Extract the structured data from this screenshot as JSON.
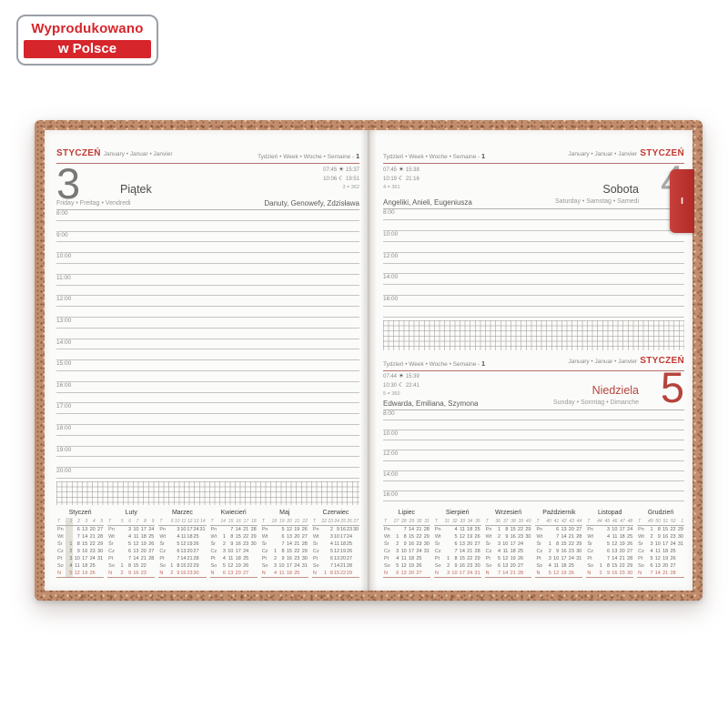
{
  "badge": {
    "line1": "Wyprodukowano",
    "line2": "w Polsce"
  },
  "tab": {
    "label": "I"
  },
  "icons": {
    "sun": "☀",
    "moon": "☾"
  },
  "week_col_header": "T",
  "weekdays": [
    "Pn",
    "Wt",
    "Śr",
    "Cz",
    "Pt",
    "So",
    "N"
  ],
  "left_page": {
    "month": "STYCZEŃ",
    "month_intl": "January • Januar • Janvier",
    "week_label": "Tydzień • Week • Woche • Semaine -",
    "week_number": "1",
    "day": {
      "number": "3",
      "name": "Piątek",
      "name_intl": "Friday • Freitag • Vendredi",
      "sunrise": "07:45",
      "sunset": "15:37",
      "moonrise": "10:06",
      "moonset": "19:51",
      "day_of_year": "3 = 362",
      "namedays": "Danuty, Genowefy, Zdzisława"
    },
    "hours": [
      "8:00",
      "9:00",
      "10:00",
      "11:00",
      "12:00",
      "13:00",
      "14:00",
      "15:00",
      "16:00",
      "17:00",
      "18:00",
      "19:00",
      "20:00"
    ]
  },
  "right_page": {
    "top": {
      "month": "STYCZEŃ",
      "month_intl": "January • Januar • Janvier",
      "week_label": "Tydzień • Week • Woche • Semaine -",
      "week_number": "1",
      "day": {
        "number": "4",
        "name": "Sobota",
        "name_intl": "Saturday • Samstag • Samedi",
        "sunrise": "07:45",
        "sunset": "15:38",
        "moonrise": "10:19",
        "moonset": "21:16",
        "day_of_year": "4 = 361",
        "namedays": "Angeliki, Anieli, Eugeniusza"
      },
      "hours": [
        "8:00",
        "10:00",
        "12:00",
        "14:00",
        "16:00"
      ]
    },
    "bottom": {
      "month": "STYCZEŃ",
      "month_intl": "January • Januar • Janvier",
      "week_label": "Tydzień • Week • Woche • Semaine -",
      "week_number": "1",
      "day": {
        "number": "5",
        "name": "Niedziela",
        "name_intl": "Sunday • Sonntag • Dimanche",
        "sunrise": "07:44",
        "sunset": "15:39",
        "moonrise": "10:30",
        "moonset": "22:41",
        "day_of_year": "5 = 360",
        "namedays": "Edwarda, Emiliana, Szymona"
      },
      "hours": [
        "8:00",
        "10:00",
        "12:00",
        "14:00",
        "16:00"
      ]
    }
  },
  "calendars_left": [
    {
      "name": "Styczeń",
      "weeks": [
        1,
        2,
        3,
        4,
        5
      ],
      "highlight_col": 0,
      "rows": [
        [
          "",
          6,
          13,
          20,
          27
        ],
        [
          "",
          7,
          14,
          21,
          28
        ],
        [
          1,
          8,
          15,
          22,
          29
        ],
        [
          2,
          9,
          16,
          23,
          30
        ],
        [
          3,
          10,
          17,
          24,
          31
        ],
        [
          4,
          11,
          18,
          25,
          ""
        ],
        [
          5,
          12,
          19,
          26,
          ""
        ]
      ]
    },
    {
      "name": "Luty",
      "weeks": [
        5,
        6,
        7,
        8,
        9
      ],
      "highlight_col": null,
      "rows": [
        [
          "",
          3,
          10,
          17,
          24
        ],
        [
          "",
          4,
          11,
          18,
          25
        ],
        [
          "",
          5,
          12,
          19,
          26
        ],
        [
          "",
          6,
          13,
          20,
          27
        ],
        [
          "",
          7,
          14,
          21,
          28
        ],
        [
          1,
          8,
          15,
          22,
          ""
        ],
        [
          2,
          9,
          16,
          23,
          ""
        ]
      ]
    },
    {
      "name": "Marzec",
      "weeks": [
        9,
        10,
        11,
        12,
        13,
        14
      ],
      "highlight_col": null,
      "rows": [
        [
          "",
          3,
          10,
          17,
          24,
          31
        ],
        [
          "",
          4,
          11,
          18,
          25,
          ""
        ],
        [
          "",
          5,
          12,
          19,
          26,
          ""
        ],
        [
          "",
          6,
          13,
          20,
          27,
          ""
        ],
        [
          "",
          7,
          14,
          21,
          28,
          ""
        ],
        [
          1,
          8,
          15,
          22,
          29,
          ""
        ],
        [
          2,
          9,
          16,
          23,
          30,
          ""
        ]
      ]
    },
    {
      "name": "Kwiecień",
      "weeks": [
        14,
        15,
        16,
        17,
        18
      ],
      "highlight_col": null,
      "rows": [
        [
          "",
          7,
          14,
          21,
          28
        ],
        [
          1,
          8,
          15,
          22,
          29
        ],
        [
          2,
          9,
          16,
          23,
          30
        ],
        [
          3,
          10,
          17,
          24,
          ""
        ],
        [
          4,
          11,
          18,
          25,
          ""
        ],
        [
          5,
          12,
          19,
          26,
          ""
        ],
        [
          6,
          13,
          20,
          27,
          ""
        ]
      ]
    },
    {
      "name": "Maj",
      "weeks": [
        18,
        19,
        20,
        21,
        22
      ],
      "highlight_col": null,
      "rows": [
        [
          "",
          5,
          12,
          19,
          26
        ],
        [
          "",
          6,
          13,
          20,
          27
        ],
        [
          "",
          7,
          14,
          21,
          28
        ],
        [
          1,
          8,
          15,
          22,
          29
        ],
        [
          2,
          9,
          16,
          23,
          30
        ],
        [
          3,
          10,
          17,
          24,
          31
        ],
        [
          4,
          11,
          18,
          25,
          ""
        ]
      ]
    },
    {
      "name": "Czerwiec",
      "weeks": [
        22,
        23,
        24,
        25,
        26,
        27
      ],
      "highlight_col": null,
      "rows": [
        [
          "",
          2,
          9,
          16,
          23,
          30
        ],
        [
          "",
          3,
          10,
          17,
          24,
          ""
        ],
        [
          "",
          4,
          11,
          18,
          25,
          ""
        ],
        [
          "",
          5,
          12,
          19,
          26,
          ""
        ],
        [
          "",
          6,
          13,
          20,
          27,
          ""
        ],
        [
          "",
          7,
          14,
          21,
          28,
          ""
        ],
        [
          1,
          8,
          15,
          22,
          29,
          ""
        ]
      ]
    }
  ],
  "calendars_right": [
    {
      "name": "Lipiec",
      "weeks": [
        27,
        28,
        29,
        30,
        31
      ],
      "highlight_col": null,
      "rows": [
        [
          "",
          7,
          14,
          21,
          28
        ],
        [
          1,
          8,
          15,
          22,
          29
        ],
        [
          2,
          9,
          16,
          23,
          30
        ],
        [
          3,
          10,
          17,
          24,
          31
        ],
        [
          4,
          11,
          18,
          25,
          ""
        ],
        [
          5,
          12,
          19,
          26,
          ""
        ],
        [
          6,
          13,
          20,
          27,
          ""
        ]
      ]
    },
    {
      "name": "Sierpień",
      "weeks": [
        31,
        32,
        33,
        34,
        35
      ],
      "highlight_col": null,
      "rows": [
        [
          "",
          4,
          11,
          18,
          25
        ],
        [
          "",
          5,
          12,
          19,
          26
        ],
        [
          "",
          6,
          13,
          20,
          27
        ],
        [
          "",
          7,
          14,
          21,
          28
        ],
        [
          1,
          8,
          15,
          22,
          29
        ],
        [
          2,
          9,
          16,
          23,
          30
        ],
        [
          3,
          10,
          17,
          24,
          31
        ]
      ]
    },
    {
      "name": "Wrzesień",
      "weeks": [
        36,
        37,
        38,
        39,
        40
      ],
      "highlight_col": null,
      "rows": [
        [
          1,
          8,
          15,
          22,
          29
        ],
        [
          2,
          9,
          16,
          23,
          30
        ],
        [
          3,
          10,
          17,
          24,
          ""
        ],
        [
          4,
          11,
          18,
          25,
          ""
        ],
        [
          5,
          12,
          19,
          26,
          ""
        ],
        [
          6,
          13,
          20,
          27,
          ""
        ],
        [
          7,
          14,
          21,
          28,
          ""
        ]
      ]
    },
    {
      "name": "Październik",
      "weeks": [
        40,
        41,
        42,
        43,
        44
      ],
      "highlight_col": null,
      "rows": [
        [
          "",
          6,
          13,
          20,
          27
        ],
        [
          "",
          7,
          14,
          21,
          28
        ],
        [
          1,
          8,
          15,
          22,
          29
        ],
        [
          2,
          9,
          16,
          23,
          30
        ],
        [
          3,
          10,
          17,
          24,
          31
        ],
        [
          4,
          11,
          18,
          25,
          ""
        ],
        [
          5,
          12,
          19,
          26,
          ""
        ]
      ]
    },
    {
      "name": "Listopad",
      "weeks": [
        44,
        45,
        46,
        47,
        48
      ],
      "highlight_col": null,
      "rows": [
        [
          "",
          3,
          10,
          17,
          24
        ],
        [
          "",
          4,
          11,
          18,
          25
        ],
        [
          "",
          5,
          12,
          19,
          26
        ],
        [
          "",
          6,
          13,
          20,
          27
        ],
        [
          "",
          7,
          14,
          21,
          28
        ],
        [
          1,
          8,
          15,
          22,
          29
        ],
        [
          2,
          9,
          16,
          23,
          30
        ]
      ]
    },
    {
      "name": "Grudzień",
      "weeks": [
        49,
        50,
        51,
        52,
        1
      ],
      "highlight_col": null,
      "rows": [
        [
          1,
          8,
          15,
          22,
          29
        ],
        [
          2,
          9,
          16,
          23,
          30
        ],
        [
          3,
          10,
          17,
          24,
          31
        ],
        [
          4,
          11,
          18,
          25,
          ""
        ],
        [
          5,
          12,
          19,
          26,
          ""
        ],
        [
          6,
          13,
          20,
          27,
          ""
        ],
        [
          7,
          14,
          21,
          28,
          ""
        ]
      ]
    }
  ]
}
